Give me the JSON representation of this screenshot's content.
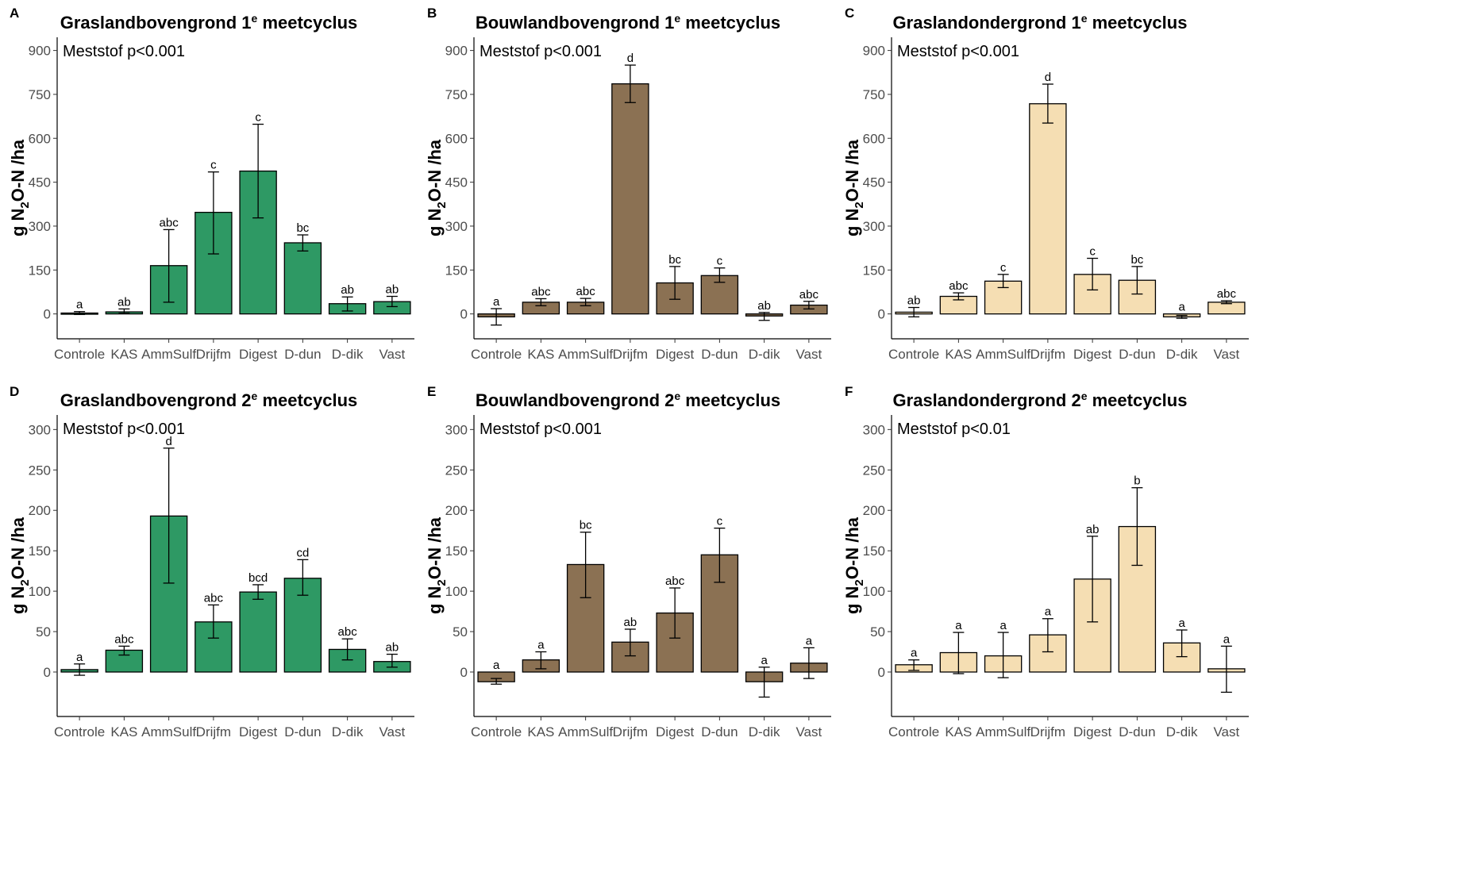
{
  "chart_data": [
    {
      "type": "bar",
      "panel_letter": "A",
      "title_parts": [
        "Graslandbovengrond 1",
        "e",
        " meetcyclus"
      ],
      "ylabel_parts": [
        "g N",
        "2",
        "O-N /ha"
      ],
      "annotation": "Meststof p<0.001",
      "categories": [
        "Controle",
        "KAS",
        "AmmSulf",
        "Drijfm",
        "Digest",
        "D-dun",
        "D-dik",
        "Vast"
      ],
      "values": [
        3,
        7,
        165,
        347,
        488,
        243,
        35,
        42
      ],
      "error_low": [
        -2,
        2,
        40,
        205,
        328,
        215,
        10,
        25
      ],
      "error_high": [
        8,
        17,
        288,
        485,
        648,
        270,
        58,
        60
      ],
      "letters": [
        "a",
        "ab",
        "abc",
        "c",
        "c",
        "bc",
        "ab",
        "ab"
      ],
      "yticks": [
        0,
        150,
        300,
        450,
        600,
        750,
        900
      ],
      "ylim": [
        -85,
        945
      ],
      "color": "#2e9964",
      "legend": "none",
      "grid": false
    },
    {
      "type": "bar",
      "panel_letter": "B",
      "title_parts": [
        "Bouwlandbovengrond 1",
        "e",
        " meetcyclus"
      ],
      "ylabel_parts": [
        "g N",
        "2",
        "O-N /ha"
      ],
      "annotation": "Meststof p<0.001",
      "categories": [
        "Controle",
        "KAS",
        "AmmSulf",
        "Drijfm",
        "Digest",
        "D-dun",
        "D-dik",
        "Vast"
      ],
      "values": [
        -10,
        40,
        40,
        786,
        106,
        131,
        -7,
        30
      ],
      "error_low": [
        -38,
        28,
        28,
        722,
        50,
        108,
        -22,
        17
      ],
      "error_high": [
        18,
        52,
        53,
        850,
        162,
        157,
        5,
        43
      ],
      "letters": [
        "a",
        "abc",
        "abc",
        "d",
        "bc",
        "c",
        "ab",
        "abc"
      ],
      "yticks": [
        0,
        150,
        300,
        450,
        600,
        750,
        900
      ],
      "ylim": [
        -85,
        945
      ],
      "color": "#8b7153",
      "legend": "none",
      "grid": false
    },
    {
      "type": "bar",
      "panel_letter": "C",
      "title_parts": [
        "Graslandondergrond 1",
        "e",
        " meetcyclus"
      ],
      "ylabel_parts": [
        "g N",
        "2",
        "O-N /ha"
      ],
      "annotation": "Meststof p<0.001",
      "categories": [
        "Controle",
        "KAS",
        "AmmSulf",
        "Drijfm",
        "Digest",
        "D-dun",
        "D-dik",
        "Vast"
      ],
      "values": [
        6,
        60,
        112,
        718,
        135,
        115,
        -10,
        40
      ],
      "error_low": [
        -10,
        48,
        90,
        652,
        82,
        68,
        -15,
        35
      ],
      "error_high": [
        22,
        72,
        135,
        785,
        190,
        162,
        -5,
        45
      ],
      "letters": [
        "ab",
        "abc",
        "c",
        "d",
        "c",
        "bc",
        "a",
        "abc"
      ],
      "yticks": [
        0,
        150,
        300,
        450,
        600,
        750,
        900
      ],
      "ylim": [
        -85,
        945
      ],
      "color": "#f5deb3",
      "legend": "none",
      "grid": false
    },
    {
      "type": "bar",
      "panel_letter": "D",
      "title_parts": [
        "Graslandbovengrond 2",
        "e",
        " meetcyclus"
      ],
      "ylabel_parts": [
        "g N",
        "2",
        "O-N /ha"
      ],
      "annotation": "Meststof p<0.001",
      "categories": [
        "Controle",
        "KAS",
        "AmmSulf",
        "Drijfm",
        "Digest",
        "D-dun",
        "D-dik",
        "Vast"
      ],
      "values": [
        3,
        27,
        193,
        62,
        99,
        116,
        28,
        13
      ],
      "error_low": [
        -4,
        21,
        110,
        42,
        90,
        95,
        15,
        6
      ],
      "error_high": [
        10,
        32,
        277,
        83,
        108,
        139,
        41,
        22
      ],
      "letters": [
        "a",
        "abc",
        "d",
        "abc",
        "bcd",
        "cd",
        "abc",
        "ab"
      ],
      "yticks": [
        0,
        50,
        100,
        150,
        200,
        250,
        300
      ],
      "ylim": [
        -55,
        318
      ],
      "color": "#2e9964",
      "legend": "none",
      "grid": false
    },
    {
      "type": "bar",
      "panel_letter": "E",
      "title_parts": [
        "Bouwlandbovengrond 2",
        "e",
        " meetcyclus"
      ],
      "ylabel_parts": [
        "g N",
        "2",
        "O-N /ha"
      ],
      "annotation": "Meststof p<0.001",
      "categories": [
        "Controle",
        "KAS",
        "AmmSulf",
        "Drijfm",
        "Digest",
        "D-dun",
        "D-dik",
        "Vast"
      ],
      "values": [
        -12,
        15,
        133,
        37,
        73,
        145,
        -12,
        11
      ],
      "error_low": [
        -15,
        4,
        92,
        20,
        42,
        111,
        -31,
        -8
      ],
      "error_high": [
        -8,
        25,
        173,
        53,
        104,
        178,
        6,
        30
      ],
      "letters": [
        "a",
        "a",
        "bc",
        "ab",
        "abc",
        "c",
        "a",
        "a"
      ],
      "yticks": [
        0,
        50,
        100,
        150,
        200,
        250,
        300
      ],
      "ylim": [
        -55,
        318
      ],
      "color": "#8b7153",
      "legend": "none",
      "grid": false
    },
    {
      "type": "bar",
      "panel_letter": "F",
      "title_parts": [
        "Graslandondergrond 2",
        "e",
        " meetcyclus"
      ],
      "ylabel_parts": [
        "g N",
        "2",
        "O-N /ha"
      ],
      "annotation": "Meststof p<0.01",
      "categories": [
        "Controle",
        "KAS",
        "AmmSulf",
        "Drijfm",
        "Digest",
        "D-dun",
        "D-dik",
        "Vast"
      ],
      "values": [
        9,
        24,
        20,
        46,
        115,
        180,
        36,
        4
      ],
      "error_low": [
        2,
        -2,
        -7,
        25,
        62,
        132,
        19,
        -25
      ],
      "error_high": [
        15,
        49,
        49,
        66,
        168,
        228,
        52,
        32
      ],
      "letters": [
        "a",
        "a",
        "a",
        "a",
        "ab",
        "b",
        "a",
        "a"
      ],
      "yticks": [
        0,
        50,
        100,
        150,
        200,
        250,
        300
      ],
      "ylim": [
        -55,
        318
      ],
      "color": "#f5deb3",
      "legend": "none",
      "grid": false
    }
  ]
}
